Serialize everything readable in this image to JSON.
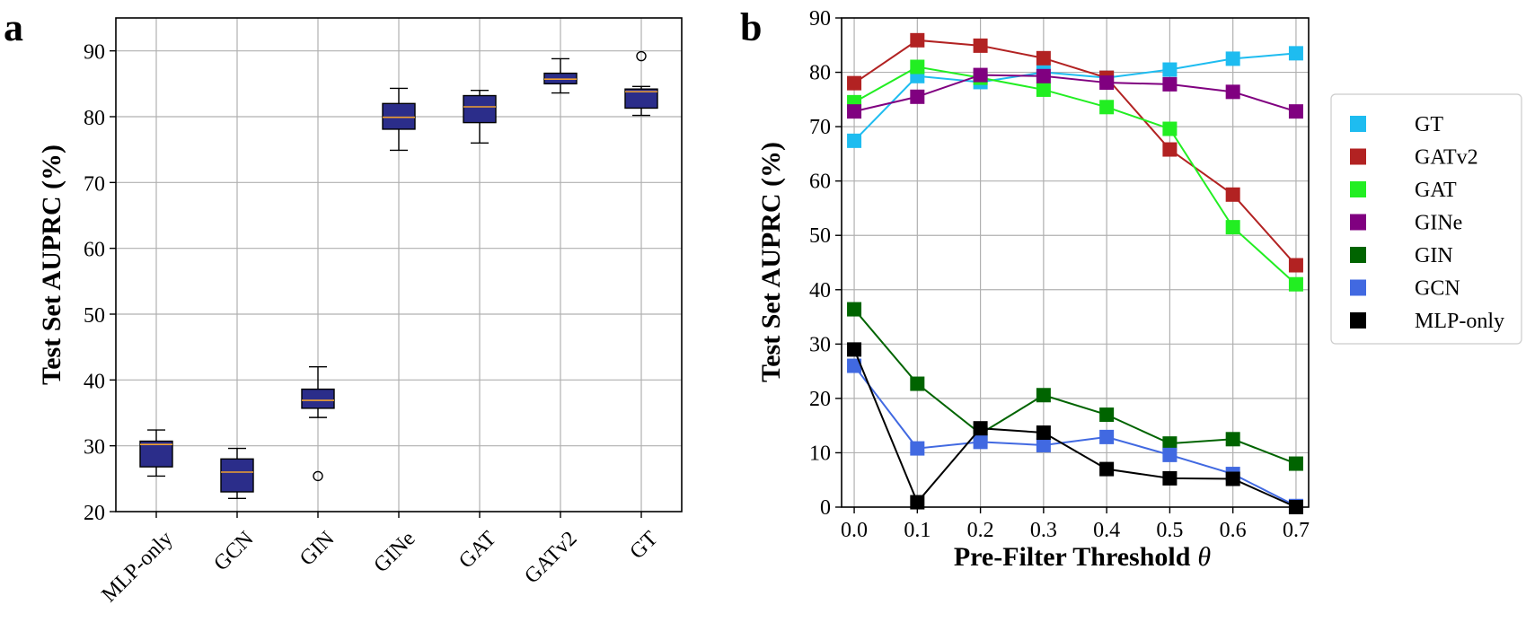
{
  "chart_data": [
    {
      "panel": "a",
      "type": "box",
      "title": "",
      "xlabel": "",
      "ylabel": "Test Set AUPRC (%)",
      "ylim": [
        20,
        95
      ],
      "yticks": [
        20,
        30,
        40,
        50,
        60,
        70,
        80,
        90
      ],
      "grid": true,
      "colors": {
        "box_fill": "#2b2d8a",
        "median": "#f0a030",
        "edge": "#000000"
      },
      "categories": [
        "MLP-only",
        "GCN",
        "GIN",
        "GINe",
        "GAT",
        "GATv2",
        "GT"
      ],
      "boxes": [
        {
          "name": "MLP-only",
          "whislo": 25.4,
          "q1": 26.8,
          "med": 30.2,
          "q3": 30.7,
          "whishi": 32.4,
          "fliers": []
        },
        {
          "name": "GCN",
          "whislo": 22.0,
          "q1": 23.0,
          "med": 26.0,
          "q3": 28.0,
          "whishi": 29.6,
          "fliers": []
        },
        {
          "name": "GIN",
          "whislo": 34.3,
          "q1": 35.7,
          "med": 36.9,
          "q3": 38.6,
          "whishi": 42.0,
          "fliers": [
            25.4
          ]
        },
        {
          "name": "GINe",
          "whislo": 74.9,
          "q1": 78.1,
          "med": 79.9,
          "q3": 82.0,
          "whishi": 84.3,
          "fliers": []
        },
        {
          "name": "GAT",
          "whislo": 76.0,
          "q1": 79.1,
          "med": 81.5,
          "q3": 83.2,
          "whishi": 84.0,
          "fliers": []
        },
        {
          "name": "GATv2",
          "whislo": 83.6,
          "q1": 85.0,
          "med": 85.7,
          "q3": 86.6,
          "whishi": 88.8,
          "fliers": []
        },
        {
          "name": "GT",
          "whislo": 80.2,
          "q1": 81.3,
          "med": 83.8,
          "q3": 84.2,
          "whishi": 84.6,
          "fliers": [
            89.2
          ]
        }
      ]
    },
    {
      "panel": "b",
      "type": "line",
      "title": "",
      "xlabel": "Pre-Filter Threshold",
      "xlabel_symbol": "θ",
      "ylabel": "Test Set AUPRC (%)",
      "xlim": [
        -0.02,
        0.72
      ],
      "ylim": [
        0,
        90
      ],
      "xticks": [
        "0.0",
        "0.1",
        "0.2",
        "0.3",
        "0.4",
        "0.5",
        "0.6",
        "0.7"
      ],
      "yticks": [
        0,
        10,
        20,
        30,
        40,
        50,
        60,
        70,
        80,
        90
      ],
      "grid": true,
      "legend_position": "right-outside",
      "x": [
        0.0,
        0.1,
        0.2,
        0.3,
        0.4,
        0.5,
        0.6,
        0.7
      ],
      "series": [
        {
          "name": "GT",
          "color": "#1ebcf0",
          "values": [
            67.4,
            79.3,
            78.2,
            80.0,
            79.0,
            80.5,
            82.5,
            83.5
          ]
        },
        {
          "name": "GATv2",
          "color": "#b22222",
          "values": [
            78.0,
            85.9,
            84.9,
            82.6,
            79.0,
            65.8,
            57.5,
            44.5
          ]
        },
        {
          "name": "GAT",
          "color": "#22ee22",
          "values": [
            74.5,
            81.0,
            79.0,
            76.8,
            73.6,
            69.6,
            51.5,
            41.0
          ]
        },
        {
          "name": "GINe",
          "color": "#800080",
          "values": [
            72.8,
            75.5,
            79.5,
            79.3,
            78.1,
            77.8,
            76.4,
            72.8
          ]
        },
        {
          "name": "GIN",
          "color": "#006400",
          "values": [
            36.4,
            22.7,
            13.5,
            20.6,
            17.0,
            11.7,
            12.5,
            8.0
          ]
        },
        {
          "name": "GCN",
          "color": "#4169e1",
          "values": [
            26.0,
            10.8,
            12.0,
            11.4,
            12.9,
            9.6,
            6.1,
            0.2
          ]
        },
        {
          "name": "MLP-only",
          "color": "#000000",
          "values": [
            29.0,
            0.9,
            14.5,
            13.7,
            7.0,
            5.3,
            5.2,
            0.0
          ]
        }
      ]
    }
  ]
}
